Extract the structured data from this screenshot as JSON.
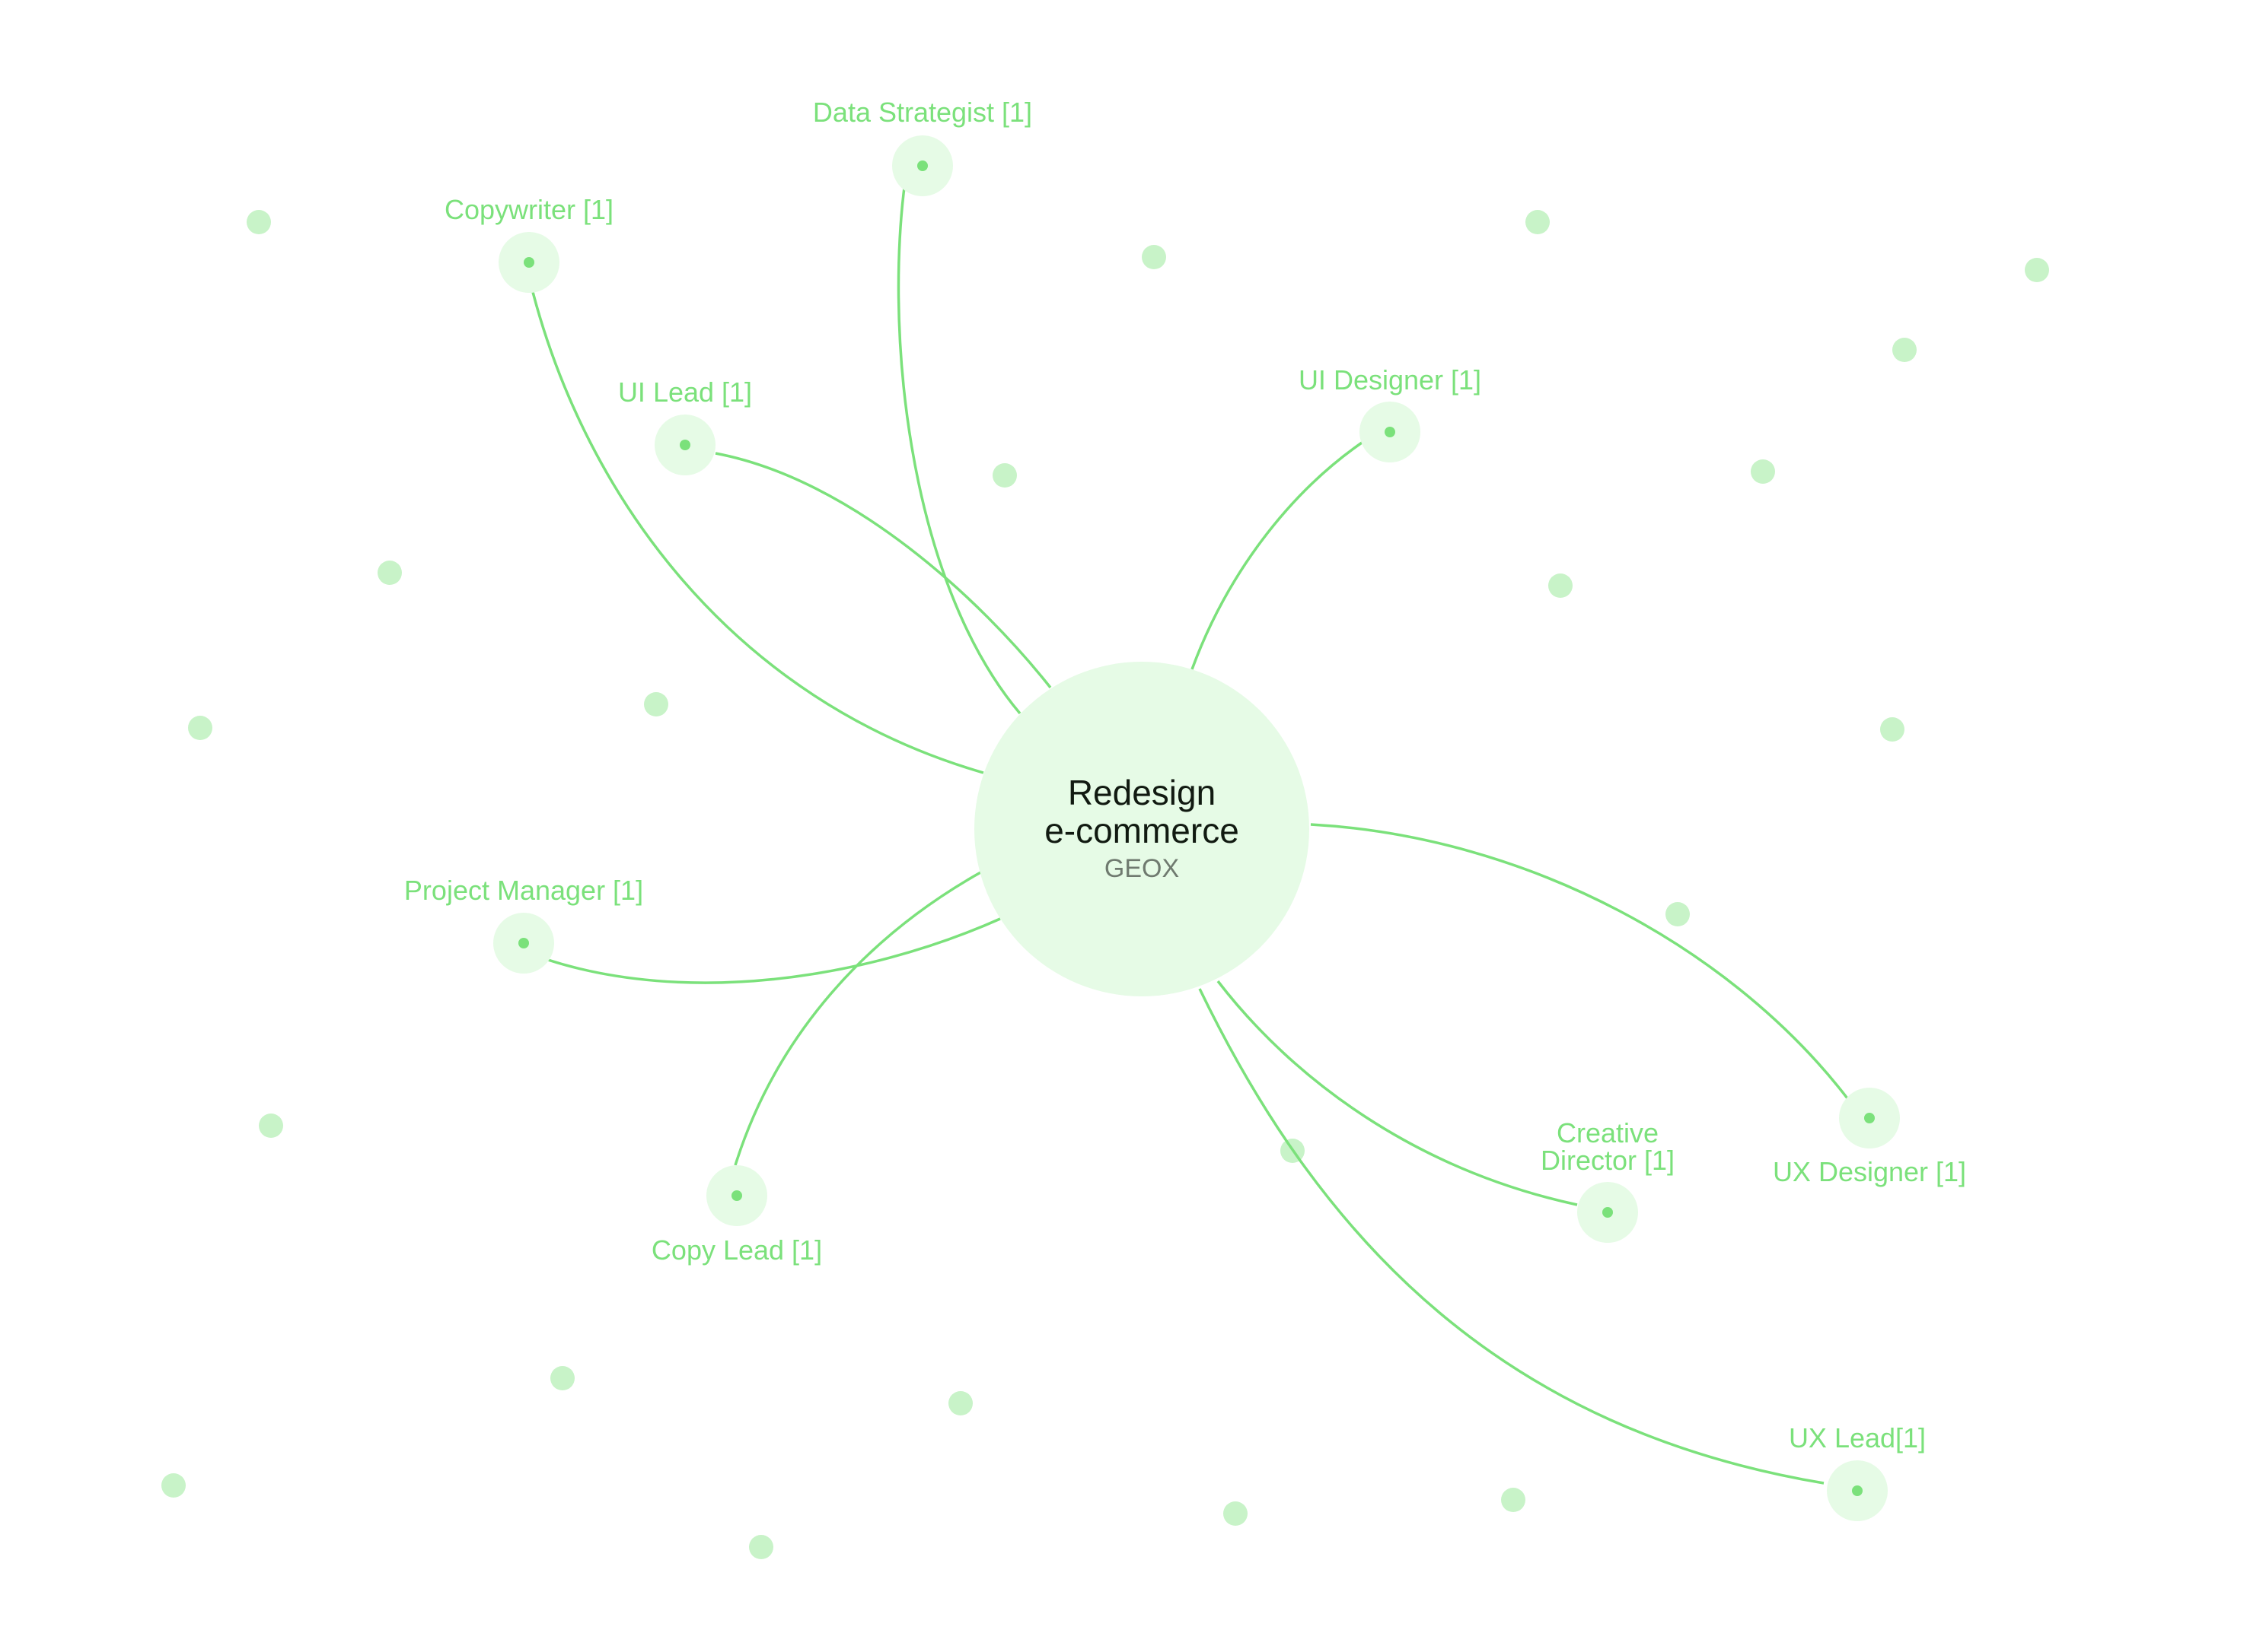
{
  "center": {
    "title_line1": "Redesign",
    "title_line2": "e-commerce",
    "subtitle": "GEOX"
  },
  "roles": [
    {
      "id": "data-strategist",
      "label": "Data Strategist [1]"
    },
    {
      "id": "copywriter",
      "label": "Copywriter [1]"
    },
    {
      "id": "ui-lead",
      "label": "UI Lead [1]"
    },
    {
      "id": "ui-designer",
      "label": "UI Designer [1]"
    },
    {
      "id": "project-manager",
      "label": "Project Manager [1]"
    },
    {
      "id": "copy-lead",
      "label": "Copy Lead [1]"
    },
    {
      "id": "creative-director",
      "label_line1": "Creative",
      "label_line2": "Director [1]"
    },
    {
      "id": "ux-designer",
      "label": "UX Designer [1]"
    },
    {
      "id": "ux-lead",
      "label": "UX Lead[1]"
    }
  ],
  "colors": {
    "accent": "#7be17b",
    "node_fill": "#e6fbe6",
    "dot_fill": "#c8f3c8",
    "title": "#111a11",
    "subtitle": "#6f7a6f"
  }
}
